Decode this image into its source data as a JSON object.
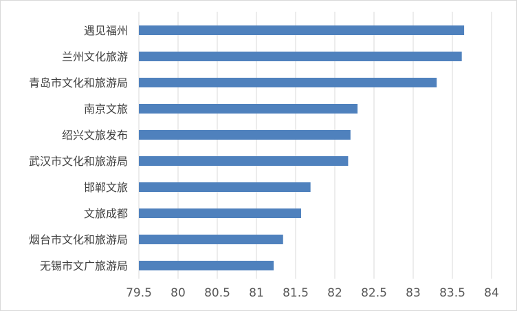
{
  "chart_data": {
    "type": "bar",
    "orientation": "horizontal",
    "categories": [
      "遇见福州",
      "兰州文化旅游",
      "青岛市文化和旅游局",
      "南京文旅",
      "绍兴文旅发布",
      "武汉市文化和旅游局",
      "邯郸文旅",
      "文旅成都",
      "烟台市文化和旅游局",
      "无锡市文广旅游局"
    ],
    "values": [
      83.65,
      83.62,
      83.3,
      82.29,
      82.2,
      82.17,
      81.69,
      81.57,
      81.34,
      81.22
    ],
    "title": "",
    "xlabel": "",
    "ylabel": "",
    "xlim": [
      79.5,
      84
    ],
    "xticks": [
      "79.5",
      "80",
      "80.5",
      "81",
      "81.5",
      "82",
      "82.5",
      "83",
      "83.5",
      "84"
    ],
    "grid": true,
    "bar_color": "#4f81bd",
    "grid_color": "#d9d9d9"
  }
}
